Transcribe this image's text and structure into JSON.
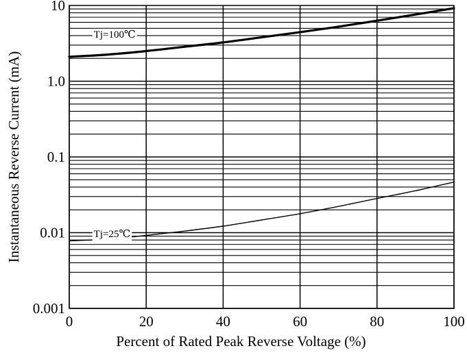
{
  "chart_data": {
    "type": "line",
    "title": "",
    "xlabel": "Percent of Rated Peak Reverse Voltage (%)",
    "ylabel": "Instantaneous Reverse Current (mA)",
    "xlim": [
      0,
      100
    ],
    "ylim": [
      0.001,
      10
    ],
    "y_scale": "log",
    "grid": true,
    "x_ticks": [
      0,
      20,
      40,
      60,
      80,
      100
    ],
    "x_tick_labels": [
      "0",
      "20",
      "40",
      "60",
      "80",
      "100"
    ],
    "y_ticks": [
      0.001,
      0.01,
      0.1,
      1,
      10
    ],
    "y_tick_labels": [
      "0.001",
      "0.01",
      "0.1",
      "1.0",
      "10"
    ],
    "series": [
      {
        "name": "Tj=100℃",
        "label_at_x": 6,
        "x": [
          0,
          10,
          20,
          30,
          40,
          50,
          60,
          70,
          80,
          90,
          100
        ],
        "y": [
          2.1,
          2.25,
          2.5,
          2.85,
          3.25,
          3.8,
          4.45,
          5.25,
          6.3,
          7.6,
          9.2
        ]
      },
      {
        "name": "Tj=25℃",
        "label_at_x": 6,
        "x": [
          0,
          10,
          20,
          30,
          40,
          50,
          60,
          70,
          80,
          90,
          100
        ],
        "y": [
          0.0078,
          0.0082,
          0.0092,
          0.0105,
          0.0122,
          0.0147,
          0.0178,
          0.0222,
          0.0283,
          0.0358,
          0.0465
        ]
      }
    ]
  }
}
